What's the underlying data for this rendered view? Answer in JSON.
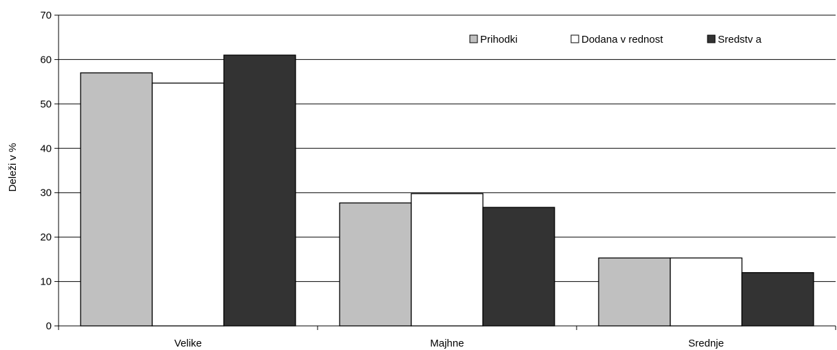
{
  "chart_data": {
    "type": "bar",
    "categories": [
      "Velike",
      "Majhne",
      "Srednje"
    ],
    "series": [
      {
        "name": "Prihodki",
        "values": [
          57,
          27.7,
          15.3
        ],
        "color": "#c0c0c0"
      },
      {
        "name": "Dodana v rednost",
        "values": [
          54.7,
          29.8,
          15.3
        ],
        "color": "#ffffff"
      },
      {
        "name": "Sredstv a",
        "values": [
          61,
          26.7,
          12
        ],
        "color": "#333333"
      }
    ],
    "ylabel": "Deleži v %",
    "xlabel": "",
    "ylim": [
      0,
      70
    ],
    "yticks": [
      0,
      10,
      20,
      30,
      40,
      50,
      60,
      70
    ],
    "grid": true,
    "legend_position": "top-right"
  }
}
